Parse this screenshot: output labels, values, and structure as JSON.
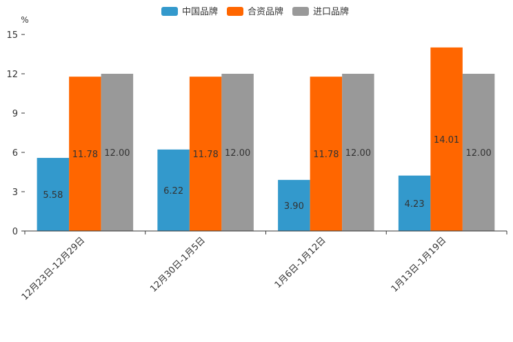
{
  "chart_data": {
    "type": "bar",
    "unit": "%",
    "categories": [
      "12月23日-12月29日",
      "12月30日-1月5日",
      "1月6日-1月12日",
      "1月13日-1月19日"
    ],
    "series": [
      {
        "name": "中国品牌",
        "color": "#3399cc",
        "values": [
          5.58,
          6.22,
          3.9,
          4.23
        ]
      },
      {
        "name": "合资品牌",
        "color": "#ff6600",
        "values": [
          11.78,
          11.78,
          11.78,
          14.01
        ]
      },
      {
        "name": "进口品牌",
        "color": "#999999",
        "values": [
          12.0,
          12.0,
          12.0,
          12.0
        ]
      }
    ],
    "ylim": [
      0,
      15
    ],
    "yticks": [
      0,
      3,
      6,
      9,
      12,
      15
    ],
    "legend_position": "top-center",
    "grid": false
  }
}
